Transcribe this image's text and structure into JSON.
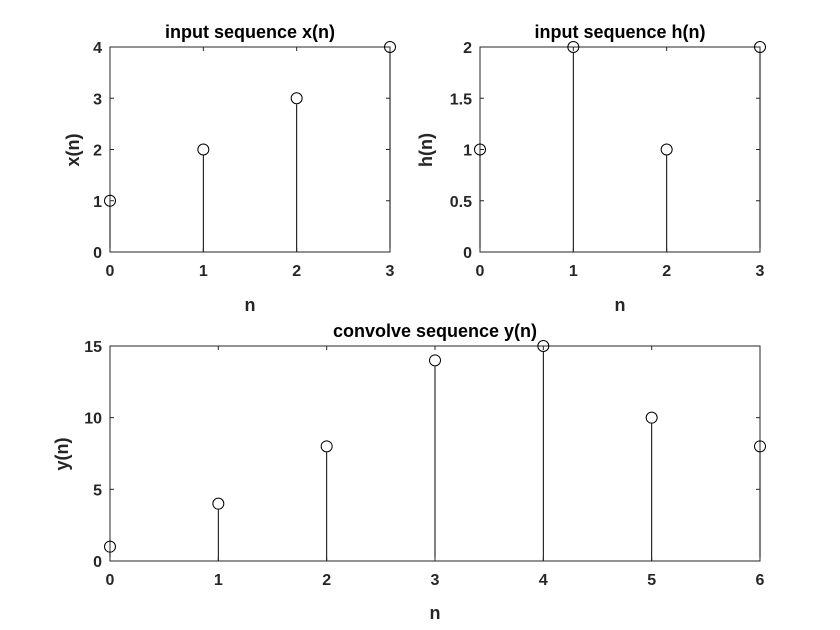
{
  "chart_data": [
    {
      "type": "stem",
      "title": "input sequence x(n)",
      "xlabel": "n",
      "ylabel": "x(n)",
      "x": [
        0,
        1,
        2,
        3
      ],
      "values": [
        1,
        2,
        3,
        4
      ],
      "xlim": [
        0,
        3
      ],
      "ylim": [
        0,
        4
      ],
      "xticks": [
        "0",
        "1",
        "2",
        "3"
      ],
      "yticks": [
        "0",
        "1",
        "2",
        "3",
        "4"
      ],
      "grid": false
    },
    {
      "type": "stem",
      "title": "input sequence h(n)",
      "xlabel": "n",
      "ylabel": "h(n)",
      "x": [
        0,
        1,
        2,
        3
      ],
      "values": [
        1,
        2,
        1,
        2
      ],
      "xlim": [
        0,
        3
      ],
      "ylim": [
        0,
        2
      ],
      "xticks": [
        "0",
        "1",
        "2",
        "3"
      ],
      "yticks": [
        "0",
        "0.5",
        "1",
        "1.5",
        "2"
      ],
      "grid": false
    },
    {
      "type": "stem",
      "title": "convolve sequence y(n)",
      "xlabel": "n",
      "ylabel": "y(n)",
      "x": [
        0,
        1,
        2,
        3,
        4,
        5,
        6
      ],
      "values": [
        1,
        4,
        8,
        14,
        15,
        10,
        8
      ],
      "xlim": [
        0,
        6
      ],
      "ylim": [
        0,
        15
      ],
      "xticks": [
        "0",
        "1",
        "2",
        "3",
        "4",
        "5",
        "6"
      ],
      "yticks": [
        "0",
        "5",
        "10",
        "15"
      ],
      "grid": false
    }
  ]
}
